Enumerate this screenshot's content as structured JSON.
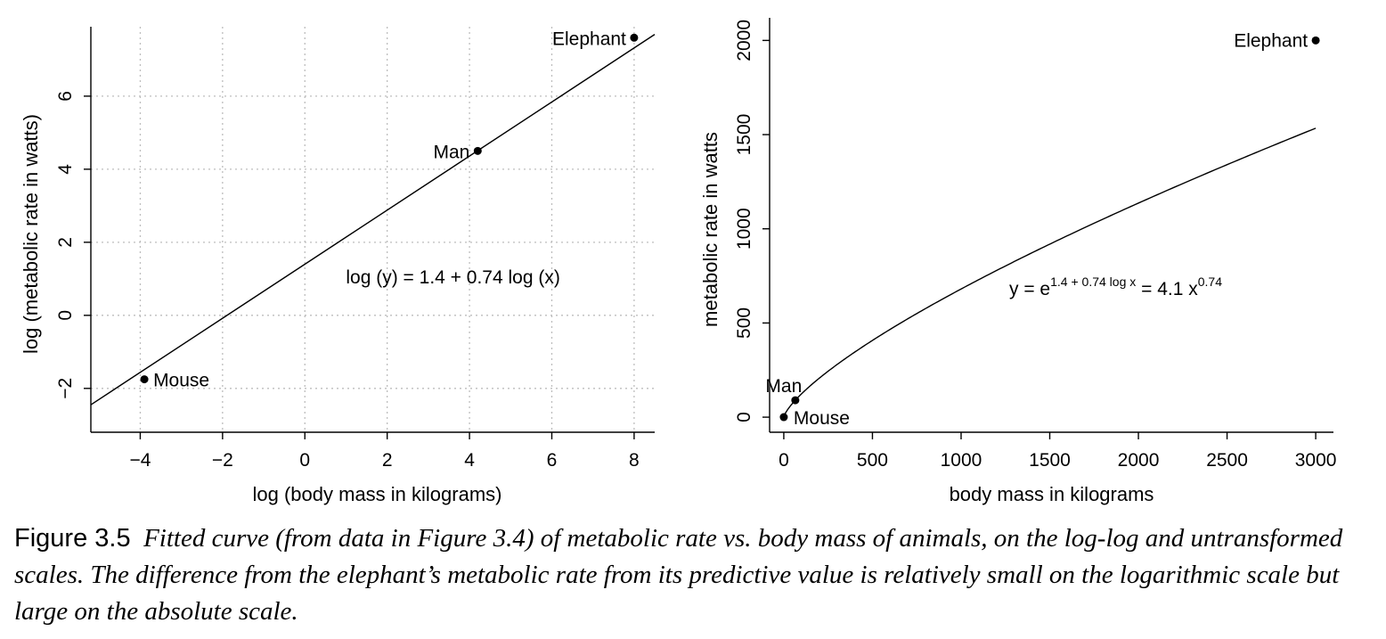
{
  "chart_data": [
    {
      "type": "scatter",
      "title": "",
      "xlabel": "log (body mass in kilograms)",
      "ylabel": "log (metabolic rate in watts)",
      "xlim": [
        -5.2,
        8.5
      ],
      "ylim": [
        -3.2,
        7.9
      ],
      "xticks": [
        -4,
        -2,
        0,
        2,
        4,
        6,
        8
      ],
      "xtick_labels": [
        "−4",
        "−2",
        "0",
        "2",
        "4",
        "6",
        "8"
      ],
      "yticks": [
        -2,
        0,
        2,
        4,
        6
      ],
      "ytick_labels": [
        "−2",
        "0",
        "2",
        "4",
        "6"
      ],
      "grid": true,
      "points": [
        {
          "label": "Mouse",
          "x": -3.9,
          "y": -1.75
        },
        {
          "label": "Man",
          "x": 4.2,
          "y": 4.5
        },
        {
          "label": "Elephant",
          "x": 8.0,
          "y": 7.6
        }
      ],
      "fit": {
        "intercept": 1.4,
        "slope": 0.74
      },
      "annotation": "log (y) = 1.4 + 0.74 log (x)"
    },
    {
      "type": "scatter",
      "title": "",
      "xlabel": "body mass in kilograms",
      "ylabel": "metabolic rate in watts",
      "xlim": [
        -80,
        3100
      ],
      "ylim": [
        -80,
        2120
      ],
      "xticks": [
        0,
        500,
        1000,
        1500,
        2000,
        2500,
        3000
      ],
      "xtick_labels": [
        "0",
        "500",
        "1000",
        "1500",
        "2000",
        "2500",
        "3000"
      ],
      "yticks": [
        0,
        500,
        1000,
        1500,
        2000
      ],
      "ytick_labels": [
        "0",
        "500",
        "1000",
        "1500",
        "2000"
      ],
      "grid": false,
      "points": [
        {
          "label": "Mouse",
          "x": 0.02,
          "y": 0.17
        },
        {
          "label": "Man",
          "x": 65,
          "y": 90
        },
        {
          "label": "Elephant",
          "x": 3000,
          "y": 2000
        }
      ],
      "fit": {
        "coefficient": 4.1,
        "exponent": 0.74
      },
      "annotation": {
        "prefix": "y = e",
        "sup1": "1.4 + 0.74 log x",
        "middle": " = 4.1 x",
        "sup2": "0.74"
      }
    }
  ],
  "caption": {
    "label": "Figure 3.5",
    "text": "Fitted curve (from data in Figure 3.4) of metabolic rate vs. body mass of animals, on the log-log and untransformed scales. The difference from the elephant’s metabolic rate from its predictive value is relatively small on the logarithmic scale but large on the absolute scale."
  }
}
